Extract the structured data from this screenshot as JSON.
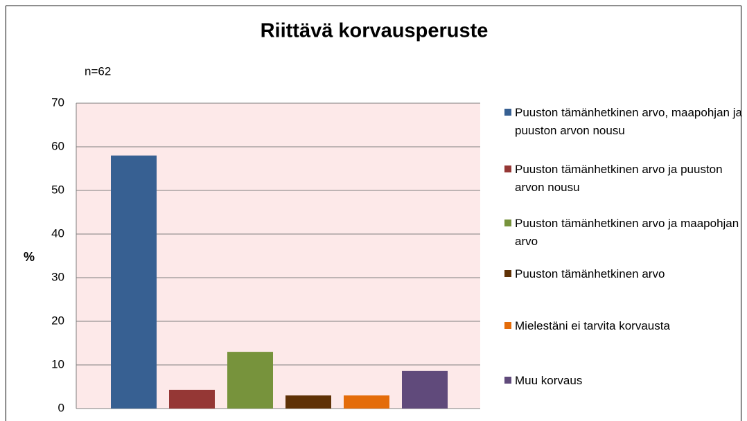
{
  "chart_data": {
    "type": "bar",
    "title": "Riittävä korvausperuste",
    "subtitle": "n=62",
    "y_label": "%",
    "categories": [
      "Puuston tämänhetkinen arvo, maapohjan ja puuston arvon nousu",
      "Puuston tämänhetkinen arvo ja puuston arvon nousu",
      "Puuston tämänhetkinen arvo ja maapohjan arvo",
      "Puuston tämänhetkinen arvo",
      "Mielestäni ei tarvita korvausta",
      "Muu korvaus"
    ],
    "values": [
      58,
      4.3,
      13,
      3,
      3,
      8.6
    ],
    "colors": [
      "#376092",
      "#953735",
      "#77933c",
      "#5f3106",
      "#e46c0a",
      "#604a7b"
    ],
    "ylim": [
      0,
      70
    ],
    "yticks": [
      0,
      10,
      20,
      30,
      40,
      50,
      60,
      70
    ],
    "grid": true,
    "legend": "right"
  }
}
